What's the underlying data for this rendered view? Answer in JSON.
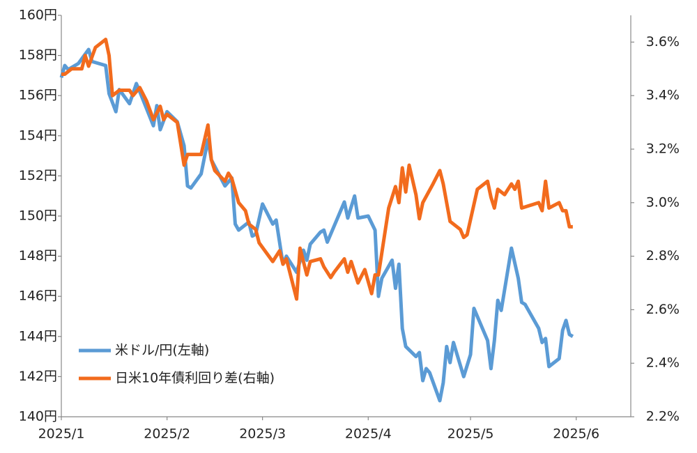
{
  "chart_data": {
    "type": "line",
    "xlim": [
      0,
      167
    ],
    "xticks": [
      {
        "value": 0,
        "label": "2025/1"
      },
      {
        "value": 31,
        "label": "2025/2"
      },
      {
        "value": 59,
        "label": "2025/3"
      },
      {
        "value": 90,
        "label": "2025/4"
      },
      {
        "value": 120,
        "label": "2025/5"
      },
      {
        "value": 151,
        "label": "2025/6"
      }
    ],
    "ylim": [
      140,
      160
    ],
    "yticks": [
      {
        "value": 140,
        "label": "140円"
      },
      {
        "value": 142,
        "label": "142円"
      },
      {
        "value": 144,
        "label": "144円"
      },
      {
        "value": 146,
        "label": "146円"
      },
      {
        "value": 148,
        "label": "148円"
      },
      {
        "value": 150,
        "label": "150円"
      },
      {
        "value": 152,
        "label": "152円"
      },
      {
        "value": 154,
        "label": "154円"
      },
      {
        "value": 156,
        "label": "156円"
      },
      {
        "value": 158,
        "label": "158円"
      },
      {
        "value": 160,
        "label": "160円"
      }
    ],
    "y2lim": [
      2.2,
      3.7
    ],
    "y2ticks": [
      {
        "value": 2.2,
        "label": "2.2%"
      },
      {
        "value": 2.4,
        "label": "2.4%"
      },
      {
        "value": 2.6,
        "label": "2.6%"
      },
      {
        "value": 2.8,
        "label": "2.8%"
      },
      {
        "value": 3.0,
        "label": "3.0%"
      },
      {
        "value": 3.2,
        "label": "3.2%"
      },
      {
        "value": 3.4,
        "label": "3.4%"
      },
      {
        "value": 3.6,
        "label": "3.6%"
      }
    ],
    "grid": false,
    "legend": "lower left",
    "series": [
      {
        "name": "米ドル/円(左軸)",
        "color": "#5b9bd5",
        "x": [
          0,
          1,
          2,
          5,
          8,
          9,
          13,
          14,
          16,
          17,
          20,
          22,
          23,
          27,
          28,
          29,
          31,
          34,
          36,
          37,
          38,
          41,
          43,
          44,
          48,
          50,
          51,
          52,
          55,
          56,
          57,
          59,
          62,
          63,
          65,
          66,
          69,
          71,
          72,
          73,
          76,
          77,
          78,
          83,
          84,
          86,
          87,
          90,
          92,
          93,
          94,
          97,
          98,
          99,
          100,
          101,
          104,
          105,
          106,
          107,
          108,
          111,
          112,
          113,
          114,
          115,
          118,
          120,
          121,
          125,
          126,
          127,
          128,
          129,
          132,
          134,
          135,
          136,
          140,
          141,
          142,
          143,
          146,
          147,
          148,
          149,
          150
        ],
        "values": [
          156.9,
          157.5,
          157.3,
          157.6,
          158.3,
          157.7,
          157.5,
          156.1,
          155.2,
          156.3,
          155.6,
          156.6,
          156.2,
          154.5,
          155.5,
          154.3,
          155.2,
          154.7,
          153.5,
          151.5,
          151.4,
          152.1,
          153.8,
          152.8,
          151.5,
          151.9,
          149.6,
          149.3,
          149.7,
          149.0,
          149.1,
          150.6,
          149.6,
          149.8,
          147.6,
          148.0,
          147.2,
          148.3,
          147.8,
          148.6,
          149.2,
          149.3,
          148.7,
          150.7,
          149.9,
          151.0,
          149.9,
          150.0,
          149.3,
          146.0,
          146.9,
          147.8,
          146.4,
          147.6,
          144.4,
          143.5,
          143.0,
          143.2,
          141.8,
          142.4,
          142.2,
          140.8,
          141.7,
          143.5,
          142.7,
          143.7,
          142.0,
          143.1,
          145.4,
          143.8,
          142.4,
          143.8,
          145.8,
          145.3,
          148.4,
          146.9,
          145.7,
          145.6,
          144.4,
          143.7,
          143.9,
          142.5,
          142.9,
          144.3,
          144.8,
          144.1,
          144.0
        ]
      },
      {
        "name": "日米10年債利回り差(右軸)",
        "color": "#f26b1d",
        "axis": "y2",
        "x": [
          0,
          1,
          3,
          6,
          7,
          8,
          10,
          13,
          14,
          15,
          16,
          17,
          20,
          21,
          23,
          25,
          27,
          29,
          30,
          31,
          34,
          36,
          37,
          38,
          41,
          43,
          44,
          45,
          48,
          49,
          50,
          52,
          54,
          55,
          57,
          58,
          62,
          64,
          65,
          66,
          69,
          70,
          72,
          73,
          76,
          77,
          79,
          80,
          83,
          84,
          85,
          87,
          89,
          91,
          92,
          93,
          96,
          98,
          99,
          100,
          101,
          102,
          104,
          105,
          106,
          109,
          111,
          112,
          114,
          117,
          118,
          119,
          122,
          125,
          126,
          127,
          128,
          130,
          132,
          133,
          134,
          135,
          140,
          141,
          142,
          143,
          146,
          147,
          148,
          149,
          150
        ],
        "values": [
          3.48,
          3.48,
          3.5,
          3.5,
          3.55,
          3.51,
          3.58,
          3.61,
          3.55,
          3.4,
          3.41,
          3.42,
          3.42,
          3.4,
          3.43,
          3.38,
          3.31,
          3.36,
          3.31,
          3.33,
          3.3,
          3.14,
          3.18,
          3.18,
          3.18,
          3.29,
          3.16,
          3.12,
          3.08,
          3.11,
          3.09,
          3.0,
          2.97,
          2.92,
          2.9,
          2.85,
          2.78,
          2.82,
          2.77,
          2.79,
          2.64,
          2.83,
          2.73,
          2.78,
          2.79,
          2.76,
          2.72,
          2.74,
          2.79,
          2.74,
          2.78,
          2.7,
          2.75,
          2.66,
          2.73,
          2.73,
          2.98,
          3.06,
          3.0,
          3.13,
          3.04,
          3.14,
          3.03,
          2.94,
          3.0,
          3.07,
          3.12,
          3.07,
          2.93,
          2.9,
          2.87,
          2.88,
          3.05,
          3.08,
          3.02,
          2.98,
          3.05,
          3.03,
          3.07,
          3.05,
          3.08,
          2.98,
          3.0,
          2.97,
          3.08,
          2.98,
          3.0,
          2.97,
          2.97,
          2.91,
          2.91
        ]
      }
    ]
  }
}
